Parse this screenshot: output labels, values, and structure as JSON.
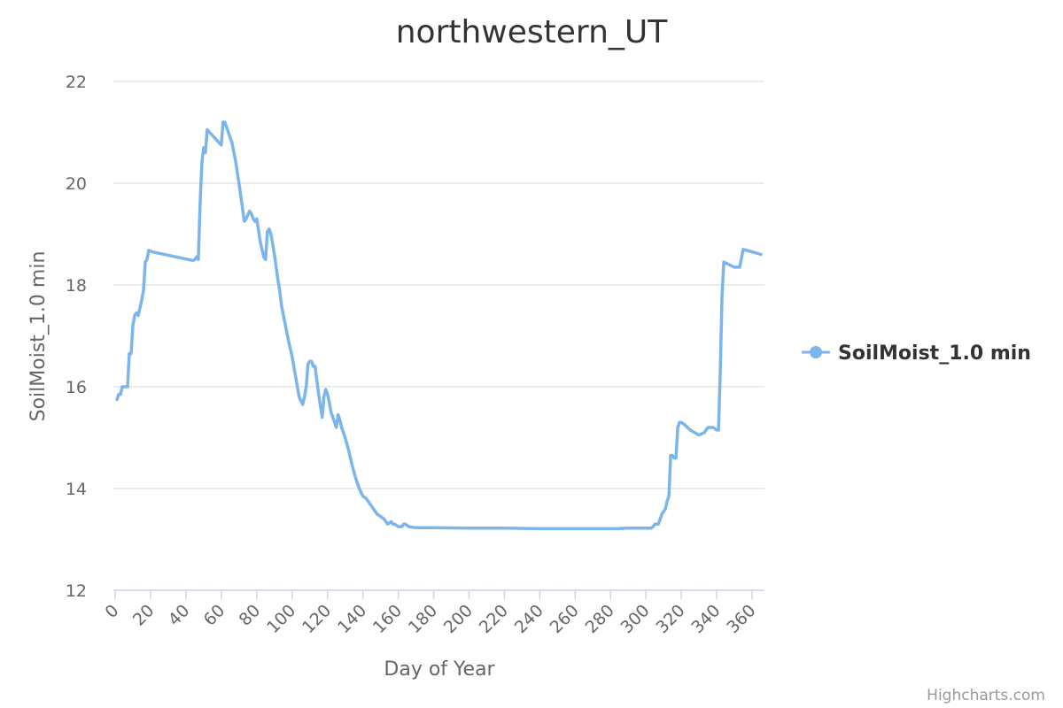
{
  "chart_data": {
    "type": "line",
    "title": "northwestern_UT",
    "xlabel": "Day of Year",
    "ylabel": "SoilMoist_1.0 min",
    "xlim": [
      -1,
      367
    ],
    "ylim": [
      12,
      22
    ],
    "xticks": [
      0,
      20,
      40,
      60,
      80,
      100,
      120,
      140,
      160,
      180,
      200,
      220,
      240,
      260,
      280,
      300,
      320,
      340,
      360
    ],
    "yticks": [
      12,
      14,
      16,
      18,
      20,
      22
    ],
    "grid": true,
    "legend_position": "right",
    "credits": "Highcharts.com",
    "series": [
      {
        "name": "SoilMoist_1.0 min",
        "color": "#7cb5ec",
        "x": [
          1,
          2,
          3,
          4,
          5,
          6,
          7,
          8,
          9,
          10,
          11,
          12,
          13,
          14,
          15,
          16,
          17,
          18,
          19,
          20,
          21,
          44,
          45,
          46,
          47,
          48,
          49,
          50,
          51,
          52,
          60,
          61,
          62,
          64,
          66,
          68,
          70,
          72,
          73,
          74,
          76,
          77,
          78,
          79,
          80,
          82,
          84,
          85,
          86,
          87,
          88,
          90,
          92,
          93,
          94,
          96,
          98,
          100,
          102,
          104,
          106,
          107,
          108,
          109,
          110,
          111,
          112,
          113,
          115,
          117,
          118,
          119,
          120,
          121,
          122,
          124,
          125,
          126,
          127,
          128,
          130,
          132,
          134,
          136,
          138,
          140,
          142,
          144,
          146,
          148,
          150,
          152,
          154,
          156,
          157,
          158,
          160,
          162,
          163,
          164,
          166,
          170,
          180,
          200,
          220,
          240,
          260,
          270,
          280,
          285,
          286,
          287,
          288,
          300,
          303,
          304,
          305,
          306,
          307,
          309,
          310,
          311,
          312,
          313,
          314,
          315,
          316,
          317,
          318,
          319,
          320,
          322,
          325,
          330,
          333,
          335,
          338,
          340,
          341,
          342,
          343,
          344,
          350,
          353,
          355,
          360,
          365
        ],
        "values": [
          15.75,
          15.85,
          15.85,
          16.0,
          16.0,
          16.0,
          16.0,
          16.65,
          16.65,
          17.2,
          17.4,
          17.45,
          17.4,
          17.55,
          17.7,
          17.9,
          18.45,
          18.5,
          18.68,
          18.67,
          18.65,
          18.48,
          18.5,
          18.55,
          18.5,
          19.6,
          20.4,
          20.7,
          20.6,
          21.05,
          20.75,
          21.2,
          21.2,
          21.0,
          20.8,
          20.45,
          20.0,
          19.5,
          19.25,
          19.3,
          19.45,
          19.4,
          19.3,
          19.25,
          19.3,
          18.85,
          18.55,
          18.5,
          19.05,
          19.1,
          19.0,
          18.6,
          18.1,
          17.9,
          17.6,
          17.25,
          16.9,
          16.6,
          16.2,
          15.8,
          15.65,
          15.8,
          16.0,
          16.45,
          16.5,
          16.5,
          16.4,
          16.4,
          15.85,
          15.4,
          15.8,
          15.95,
          15.85,
          15.7,
          15.5,
          15.3,
          15.2,
          15.45,
          15.35,
          15.2,
          15.0,
          14.75,
          14.45,
          14.2,
          14.0,
          13.85,
          13.8,
          13.7,
          13.6,
          13.5,
          13.45,
          13.4,
          13.3,
          13.35,
          13.3,
          13.3,
          13.25,
          13.25,
          13.3,
          13.3,
          13.25,
          13.23,
          13.23,
          13.22,
          13.22,
          13.21,
          13.21,
          13.21,
          13.21,
          13.21,
          13.22,
          13.21,
          13.22,
          13.22,
          13.22,
          13.25,
          13.3,
          13.3,
          13.3,
          13.5,
          13.55,
          13.6,
          13.75,
          13.85,
          14.65,
          14.65,
          14.6,
          14.6,
          15.2,
          15.3,
          15.3,
          15.25,
          15.15,
          15.05,
          15.1,
          15.2,
          15.2,
          15.15,
          15.15,
          16.3,
          17.8,
          18.45,
          18.35,
          18.35,
          18.7,
          18.65,
          18.6
        ]
      }
    ]
  }
}
